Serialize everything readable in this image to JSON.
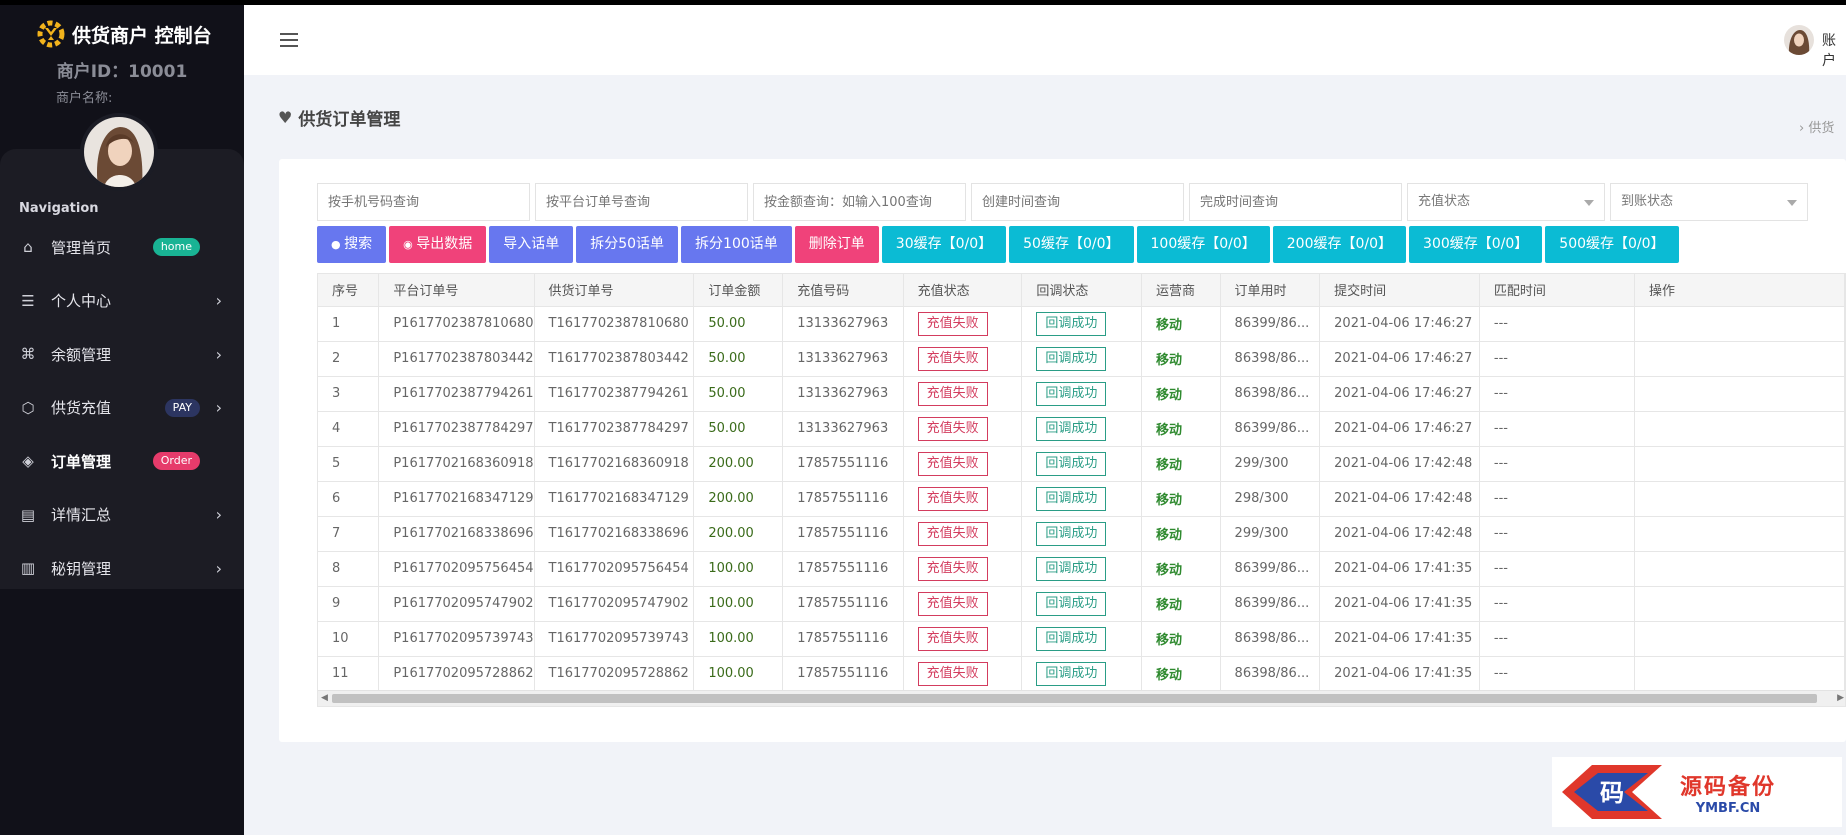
{
  "sidebar": {
    "brand_title": "供货商户 控制台",
    "merchant_id": "商户ID：10001",
    "merchant_name": "商户名称:",
    "nav_heading": "Navigation",
    "items": [
      {
        "label": "管理首页",
        "icon": "home-icon",
        "badge": "home",
        "badge_color": "#19b394",
        "chevron": false
      },
      {
        "label": "个人中心",
        "icon": "list-icon",
        "badge": "",
        "chevron": true
      },
      {
        "label": "余额管理",
        "icon": "command-icon",
        "badge": "",
        "chevron": true
      },
      {
        "label": "供货充值",
        "icon": "box-icon",
        "badge": "PAY",
        "badge_color": "#2c3561",
        "chevron": true
      },
      {
        "label": "订单管理",
        "icon": "layers-icon",
        "badge": "Order",
        "badge_color": "#e63b6b",
        "chevron": false
      },
      {
        "label": "详情汇总",
        "icon": "document-icon",
        "badge": "",
        "chevron": true
      },
      {
        "label": "秘钥管理",
        "icon": "map-icon",
        "badge": "",
        "chevron": true
      }
    ]
  },
  "header": {
    "user_label": "账户"
  },
  "page": {
    "title": "供货订单管理",
    "breadcrumb": "›  供货"
  },
  "filters": {
    "phone_placeholder": "按手机号码查询",
    "platform_order_placeholder": "按平台订单号查询",
    "amount_placeholder": "按金额查询：如输入100查询",
    "create_time_placeholder": "创建时间查询",
    "finish_time_placeholder": "完成时间查询",
    "recharge_status": "充值状态",
    "arrival_status": "到账状态"
  },
  "buttons": [
    {
      "label": "搜索",
      "icon": "search-icon",
      "color": "#6777ef"
    },
    {
      "label": "导出数据",
      "icon": "eye-icon",
      "color": "#f0427a"
    },
    {
      "label": "导入话单",
      "color": "#6777ef"
    },
    {
      "label": "拆分50话单",
      "color": "#6777ef"
    },
    {
      "label": "拆分100话单",
      "color": "#6777ef"
    },
    {
      "label": "删除订单",
      "color": "#f0427a"
    },
    {
      "label": "30缓存【0/0】",
      "color": "#0bbbd4"
    },
    {
      "label": "50缓存【0/0】",
      "color": "#0bbbd4"
    },
    {
      "label": "100缓存【0/0】",
      "color": "#0bbbd4"
    },
    {
      "label": "200缓存【0/0】",
      "color": "#0bbbd4"
    },
    {
      "label": "300缓存【0/0】",
      "color": "#0bbbd4"
    },
    {
      "label": "500缓存【0/0】",
      "color": "#0bbbd4"
    }
  ],
  "table": {
    "columns": [
      "序号",
      "平台订单号",
      "供货订单号",
      "订单金额",
      "充值号码",
      "充值状态",
      "回调状态",
      "运营商",
      "订单用时",
      "提交时间",
      "匹配时间",
      "操作"
    ],
    "rows": [
      [
        "1",
        "P1617702387810680",
        "T1617702387810680",
        "50.00",
        "13133627963",
        "充值失败",
        "回调成功",
        "移动",
        "86399/86...",
        "2021-04-06 17:46:27",
        "---",
        ""
      ],
      [
        "2",
        "P1617702387803442",
        "T1617702387803442",
        "50.00",
        "13133627963",
        "充值失败",
        "回调成功",
        "移动",
        "86398/86...",
        "2021-04-06 17:46:27",
        "---",
        ""
      ],
      [
        "3",
        "P1617702387794261",
        "T1617702387794261",
        "50.00",
        "13133627963",
        "充值失败",
        "回调成功",
        "移动",
        "86398/86...",
        "2021-04-06 17:46:27",
        "---",
        ""
      ],
      [
        "4",
        "P1617702387784297",
        "T1617702387784297",
        "50.00",
        "13133627963",
        "充值失败",
        "回调成功",
        "移动",
        "86399/86...",
        "2021-04-06 17:46:27",
        "---",
        ""
      ],
      [
        "5",
        "P1617702168360918",
        "T1617702168360918",
        "200.00",
        "17857551116",
        "充值失败",
        "回调成功",
        "移动",
        "299/300",
        "2021-04-06 17:42:48",
        "---",
        ""
      ],
      [
        "6",
        "P1617702168347129",
        "T1617702168347129",
        "200.00",
        "17857551116",
        "充值失败",
        "回调成功",
        "移动",
        "298/300",
        "2021-04-06 17:42:48",
        "---",
        ""
      ],
      [
        "7",
        "P1617702168338696",
        "T1617702168338696",
        "200.00",
        "17857551116",
        "充值失败",
        "回调成功",
        "移动",
        "299/300",
        "2021-04-06 17:42:48",
        "---",
        ""
      ],
      [
        "8",
        "P1617702095756454",
        "T1617702095756454",
        "100.00",
        "17857551116",
        "充值失败",
        "回调成功",
        "移动",
        "86399/86...",
        "2021-04-06 17:41:35",
        "---",
        ""
      ],
      [
        "9",
        "P1617702095747902",
        "T1617702095747902",
        "100.00",
        "17857551116",
        "充值失败",
        "回调成功",
        "移动",
        "86399/86...",
        "2021-04-06 17:41:35",
        "---",
        ""
      ],
      [
        "10",
        "P1617702095739743",
        "T1617702095739743",
        "100.00",
        "17857551116",
        "充值失败",
        "回调成功",
        "移动",
        "86398/86...",
        "2021-04-06 17:41:35",
        "---",
        ""
      ],
      [
        "11",
        "P1617702095728862",
        "T1617702095728862",
        "100.00",
        "17857551116",
        "充值失败",
        "回调成功",
        "移动",
        "86398/86...",
        "2021-04-06 17:41:35",
        "---",
        ""
      ]
    ]
  },
  "watermark": {
    "logo_char": "码",
    "cn": "源码备份",
    "en": "YMBF.CN"
  }
}
